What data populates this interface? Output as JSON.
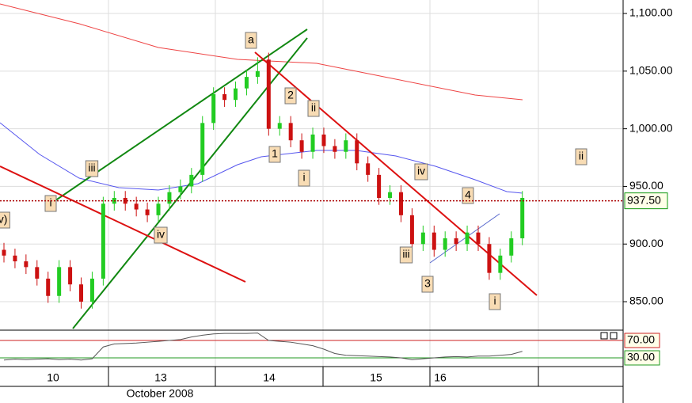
{
  "chart_data": {
    "type": "candlestick",
    "month_label": "October 2008",
    "days": [
      "10",
      "13",
      "14",
      "15",
      "16"
    ],
    "ylim": [
      825.3,
      1111.7
    ],
    "yticks": [
      {
        "value": 1100,
        "label": "1,100.00"
      },
      {
        "value": 1050,
        "label": "1,050.00"
      },
      {
        "value": 1000,
        "label": "1,000.00"
      },
      {
        "value": 950,
        "label": "950.00"
      },
      {
        "value": 900,
        "label": "900.00"
      },
      {
        "value": 850,
        "label": "850.00"
      }
    ],
    "last_price": {
      "value": 937.5,
      "label": "937.50"
    },
    "up_color": "#22cc22",
    "down_color": "#cc1111",
    "open": [
      895,
      890,
      885,
      880,
      870,
      855,
      880,
      865,
      850,
      870,
      935,
      940,
      935,
      930,
      925,
      935,
      945,
      950,
      960,
      1005,
      1030,
      1025,
      1035,
      1045,
      1060,
      1000,
      1005,
      990,
      980,
      995,
      985,
      980,
      990,
      970,
      960,
      940,
      945,
      925,
      900,
      910,
      895,
      905,
      900,
      910,
      900,
      875,
      890,
      905
    ],
    "high": [
      901,
      896,
      891,
      886,
      876,
      886,
      886,
      871,
      876,
      941,
      946,
      946,
      941,
      936,
      941,
      951,
      956,
      966,
      1011,
      1036,
      1036,
      1041,
      1051,
      1062,
      1066,
      1011,
      1011,
      996,
      1001,
      1001,
      991,
      996,
      996,
      976,
      966,
      951,
      951,
      931,
      916,
      916,
      911,
      911,
      916,
      916,
      906,
      896,
      911,
      946
    ],
    "low": [
      884,
      879,
      874,
      864,
      849,
      849,
      859,
      844,
      844,
      864,
      929,
      929,
      924,
      919,
      919,
      929,
      939,
      944,
      954,
      999,
      1019,
      1019,
      1029,
      1039,
      994,
      994,
      984,
      974,
      974,
      979,
      974,
      974,
      964,
      954,
      934,
      934,
      919,
      894,
      894,
      889,
      889,
      894,
      894,
      894,
      869,
      869,
      884,
      899
    ],
    "close": [
      890,
      885,
      880,
      870,
      855,
      880,
      865,
      850,
      870,
      935,
      940,
      935,
      930,
      925,
      935,
      945,
      950,
      960,
      1005,
      1030,
      1025,
      1035,
      1045,
      1050,
      1000,
      1005,
      990,
      980,
      995,
      985,
      980,
      990,
      970,
      960,
      940,
      945,
      925,
      900,
      910,
      895,
      905,
      900,
      910,
      900,
      875,
      890,
      905,
      940
    ],
    "oscillator": {
      "ylim": [
        10,
        93.6
      ],
      "yticks": [
        {
          "value": 70,
          "label": "70.00"
        },
        {
          "value": 30,
          "label": "30.00"
        }
      ],
      "values": [
        25,
        27,
        26,
        27,
        28,
        26,
        27,
        25,
        28,
        55,
        62,
        63,
        64,
        66,
        68,
        70,
        72,
        78,
        82,
        85,
        86,
        86,
        86,
        87,
        70,
        68,
        66,
        62,
        58,
        50,
        40,
        36,
        35,
        34,
        33,
        32,
        30,
        26,
        28,
        30,
        32,
        33,
        32,
        34,
        34,
        36,
        38,
        45
      ]
    },
    "annotations": [
      "a",
      "2",
      "ii",
      "1",
      "i",
      "iii",
      "i",
      "iv)",
      "iv",
      "iv",
      "iii",
      "3",
      "4",
      "i",
      "ii"
    ]
  }
}
